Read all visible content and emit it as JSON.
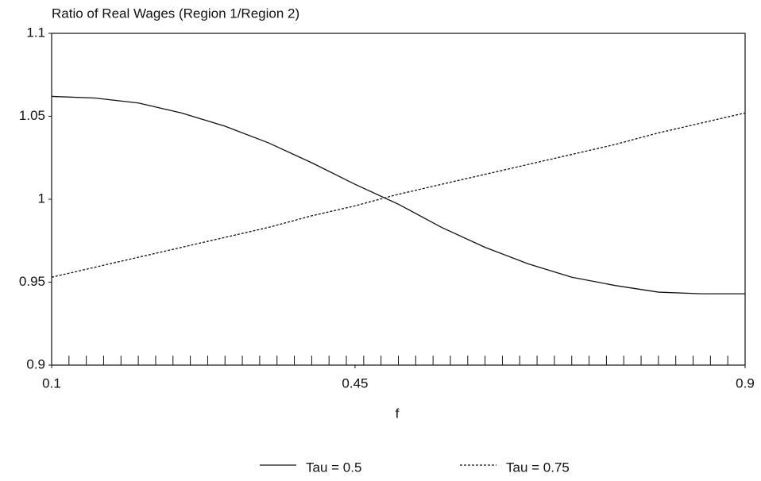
{
  "chart_data": {
    "type": "line",
    "title": "Ratio of Real Wages (Region 1/Region 2)",
    "xlabel": "f",
    "x": [
      0.1,
      0.15,
      0.2,
      0.25,
      0.3,
      0.35,
      0.4,
      0.45,
      0.5,
      0.55,
      0.6,
      0.65,
      0.7,
      0.75,
      0.8,
      0.85,
      0.9
    ],
    "series": [
      {
        "name": "Tau = 0.5",
        "color": "#111111",
        "dash": "solid",
        "values": [
          1.062,
          1.061,
          1.058,
          1.052,
          1.044,
          1.034,
          1.022,
          1.009,
          0.997,
          0.983,
          0.971,
          0.961,
          0.953,
          0.948,
          0.944,
          0.943,
          0.943
        ]
      },
      {
        "name": "Tau = 0.75",
        "color": "#111111",
        "dash": "dotted",
        "values": [
          0.953,
          0.959,
          0.965,
          0.971,
          0.977,
          0.983,
          0.99,
          0.996,
          1.003,
          1.009,
          1.015,
          1.021,
          1.027,
          1.033,
          1.04,
          1.046,
          1.052
        ]
      }
    ],
    "xlim": [
      0.1,
      0.9
    ],
    "xticks": [
      0.1,
      0.45,
      0.9
    ],
    "xminorticks": [
      0.1,
      0.12,
      0.14,
      0.16,
      0.18,
      0.2,
      0.22,
      0.24,
      0.26,
      0.28,
      0.3,
      0.32,
      0.34,
      0.36,
      0.38,
      0.4,
      0.42,
      0.44,
      0.46,
      0.48,
      0.5,
      0.52,
      0.54,
      0.56,
      0.58,
      0.6,
      0.62,
      0.64,
      0.66,
      0.68,
      0.7,
      0.72,
      0.74,
      0.76,
      0.78,
      0.8,
      0.82,
      0.84,
      0.86,
      0.88,
      0.9
    ],
    "ylim": [
      0.9,
      1.1
    ],
    "yticks": [
      0.9,
      0.95,
      1,
      1.05,
      1.1
    ],
    "grid": false,
    "legend": "bottom"
  }
}
